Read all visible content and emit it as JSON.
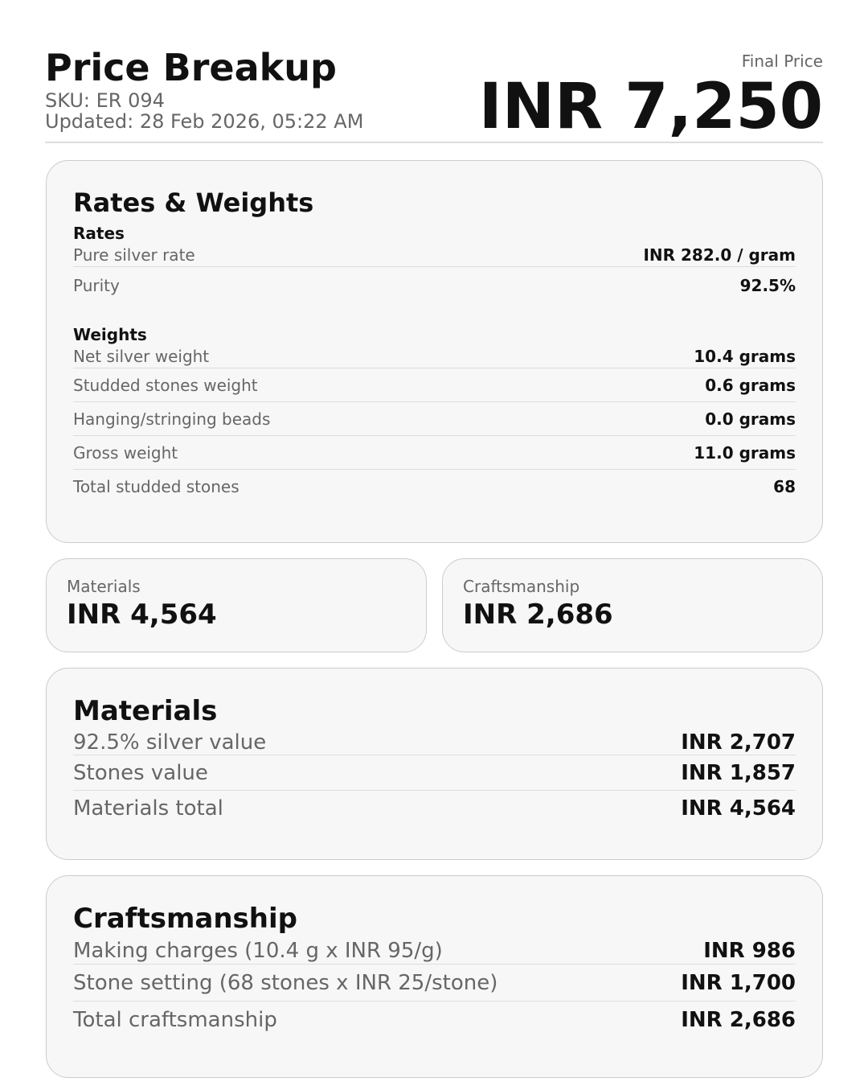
{
  "header": {
    "title": "Price Breakup",
    "sku": "SKU: ER 094",
    "updated": "Updated: 28 Feb 2026, 05:22 AM",
    "final_label": "Final Price",
    "final_value": "INR 7,250"
  },
  "rates_weights": {
    "title": "Rates & Weights",
    "rates_heading": "Rates",
    "rates": [
      {
        "label": "Pure silver rate",
        "value": "INR 282.0 / gram"
      },
      {
        "label": "Purity",
        "value": "92.5%"
      }
    ],
    "weights_heading": "Weights",
    "weights": [
      {
        "label": "Net silver weight",
        "value": "10.4 grams"
      },
      {
        "label": "Studded stones weight",
        "value": "0.6 grams"
      },
      {
        "label": "Hanging/stringing beads",
        "value": "0.0 grams"
      },
      {
        "label": "Gross weight",
        "value": "11.0 grams"
      },
      {
        "label": "Total studded stones",
        "value": "68"
      }
    ]
  },
  "summary": [
    {
      "label": "Materials",
      "value": "INR 4,564"
    },
    {
      "label": "Craftsmanship",
      "value": "INR 2,686"
    }
  ],
  "materials": {
    "title": "Materials",
    "rows": [
      {
        "label": "92.5% silver value",
        "value": "INR 2,707"
      },
      {
        "label": "Stones value",
        "value": "INR 1,857"
      },
      {
        "label": "Materials total",
        "value": "INR 4,564"
      }
    ]
  },
  "craftsmanship": {
    "title": "Craftsmanship",
    "rows": [
      {
        "label": "Making charges (10.4 g x INR 95/g)",
        "value": "INR 986"
      },
      {
        "label": "Stone setting (68 stones x INR 25/stone)",
        "value": "INR 1,700"
      },
      {
        "label": "Total craftsmanship",
        "value": "INR 2,686"
      }
    ]
  }
}
